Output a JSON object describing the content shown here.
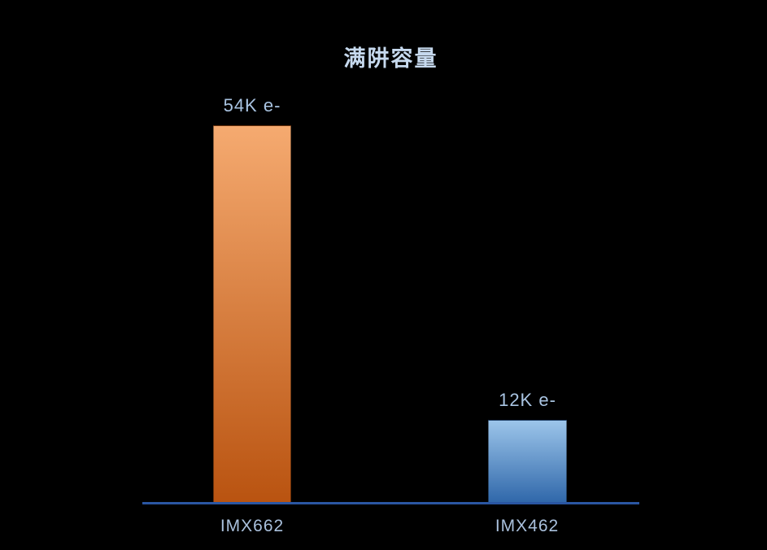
{
  "chart_data": {
    "type": "bar",
    "title": "满阱容量",
    "categories": [
      "IMX662",
      "IMX462"
    ],
    "values": [
      54000,
      12000
    ],
    "value_labels": [
      "54K e-",
      "12K e-"
    ],
    "ylim": [
      0,
      54000
    ],
    "xlabel": "",
    "ylabel": "",
    "grid": false,
    "legend": false,
    "background_color": "#000000",
    "axis_line_color": "#2a56a2",
    "title_color": "#c6d9ee",
    "value_label_color": "#a9c4e2",
    "category_label_color": "#a9c0dc",
    "bar_gradients": [
      {
        "top": "#f5aa70",
        "bottom": "#b95310"
      },
      {
        "top": "#9cc5ea",
        "bottom": "#2e66a9"
      }
    ]
  }
}
